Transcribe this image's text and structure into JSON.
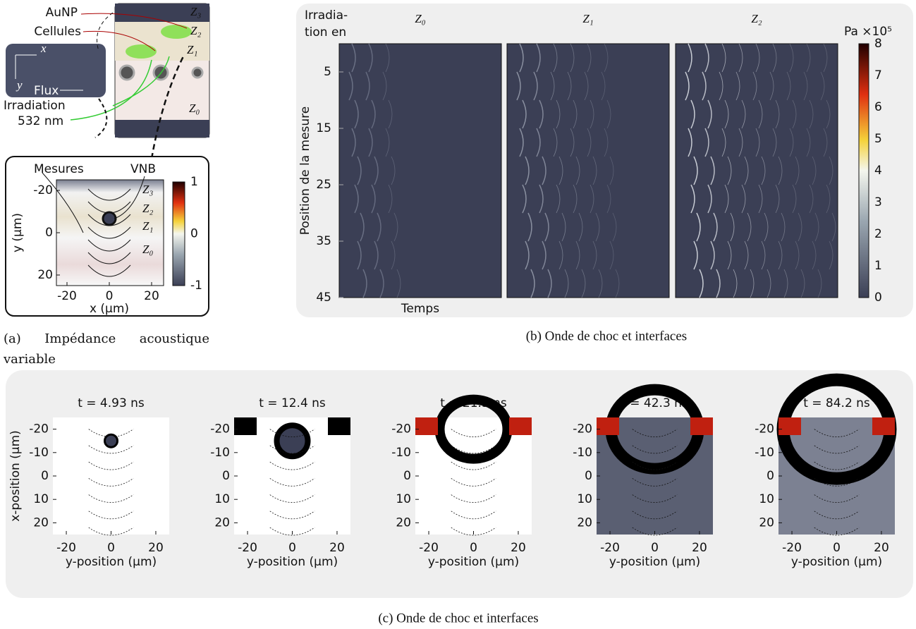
{
  "panel_a": {
    "diagram": {
      "aunp": "AuNP",
      "cellules": "Cellules",
      "inset_x": "x",
      "inset_y": "y",
      "flux": "Flux",
      "irradiation": "Irradiation",
      "wavelength": "532 nm",
      "zones": [
        "Z₃",
        "Z₂",
        "Z₁",
        "Z₀"
      ]
    },
    "plot": {
      "mesures": "Mesures",
      "vnb": "VNB",
      "zones": [
        "Z₃",
        "Z₂",
        "Z₁",
        "Z₀"
      ],
      "x_label": "x (µm)",
      "y_label": "y (µm)",
      "xticks": [
        -20,
        0,
        20
      ],
      "yticks": [
        -20,
        0,
        20
      ],
      "colorbar_ticks": [
        1,
        0,
        -1
      ]
    },
    "caption": "(a) Impédance acoustique variable"
  },
  "panel_b": {
    "corner_label": [
      "Irradia-",
      "tion en"
    ],
    "column_titles": [
      "Z₀",
      "Z₁",
      "Z₂"
    ],
    "y_label": "Position de la mesure",
    "x_label": "Temps",
    "yticks": [
      5,
      15,
      25,
      35,
      45
    ],
    "colorbar_unit": "Pa ×10⁵",
    "colorbar_ticks": [
      0,
      1,
      2,
      3,
      4,
      5,
      6,
      7,
      8
    ],
    "caption": "(b) Onde de choc et interfaces"
  },
  "panel_c": {
    "titles": [
      "t = 4.93 ns",
      "t = 12.4 ns",
      "t = 21.3 ns",
      "t = 42.3 ns",
      "t = 84.2 ns"
    ],
    "x_label": "y-position (µm)",
    "y_label": "x-position (µm)",
    "xticks": [
      -20,
      0,
      20
    ],
    "yticks": [
      -20,
      -10,
      0,
      10,
      20
    ],
    "caption": "(c) Onde de choc et interfaces"
  }
}
